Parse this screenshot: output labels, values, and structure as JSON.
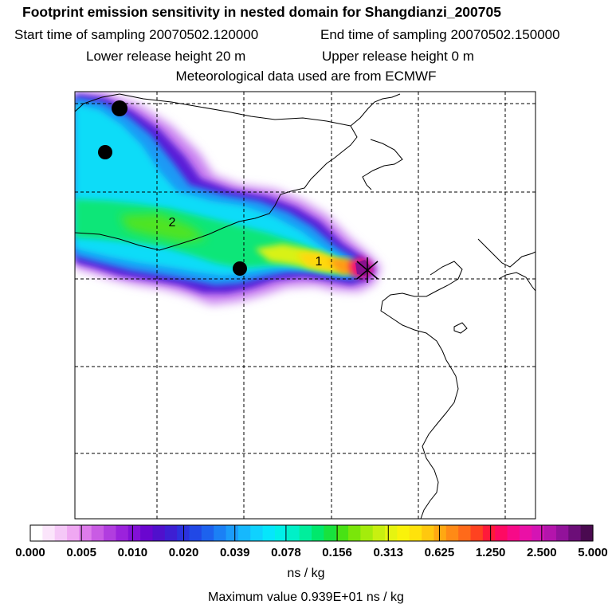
{
  "header": {
    "title": "Footprint emission sensitivity in nested domain for Shangdianzi_200705",
    "start_time": "Start time of sampling 20070502.120000",
    "end_time": "End time of sampling 20070502.150000",
    "lower_release": "Lower release height   20 m",
    "upper_release": "Upper release height    0 m",
    "met_data": "Meteorological data used are from ECMWF"
  },
  "map": {
    "markers": [
      {
        "label": "1"
      },
      {
        "label": "2"
      }
    ]
  },
  "colorbar": {
    "tick_labels": [
      "0.000",
      "0.005",
      "0.010",
      "0.020",
      "0.039",
      "0.078",
      "0.156",
      "0.313",
      "0.625",
      "1.250",
      "2.500",
      "5.000"
    ],
    "colors": [
      "#ffffff",
      "#fbe5fb",
      "#f5c8f7",
      "#efa8f2",
      "#de7ceb",
      "#c95be4",
      "#b13ddf",
      "#9b22dc",
      "#8310d6",
      "#6a06cf",
      "#5010cc",
      "#3d1fd3",
      "#2b32dd",
      "#2148e6",
      "#1d62ee",
      "#1b80f5",
      "#1b9cfa",
      "#16b8fd",
      "#0fd2fe",
      "#06e6fb",
      "#00f0e8",
      "#00f0c8",
      "#00ee9c",
      "#00e86c",
      "#18e23e",
      "#48e214",
      "#7ae60a",
      "#a4ec0c",
      "#c8f010",
      "#e6f410",
      "#faf20a",
      "#ffe20c",
      "#ffc80e",
      "#ffa812",
      "#ff8a16",
      "#ff6a1a",
      "#ff4220",
      "#ff1a3a",
      "#fe0a62",
      "#f70a88",
      "#ea10a6",
      "#d414b4",
      "#b414ac",
      "#92129a",
      "#6c0e78",
      "#4a0a50"
    ]
  },
  "units": "ns / kg",
  "max_value": "Maximum value  0.939E+01 ns / kg"
}
